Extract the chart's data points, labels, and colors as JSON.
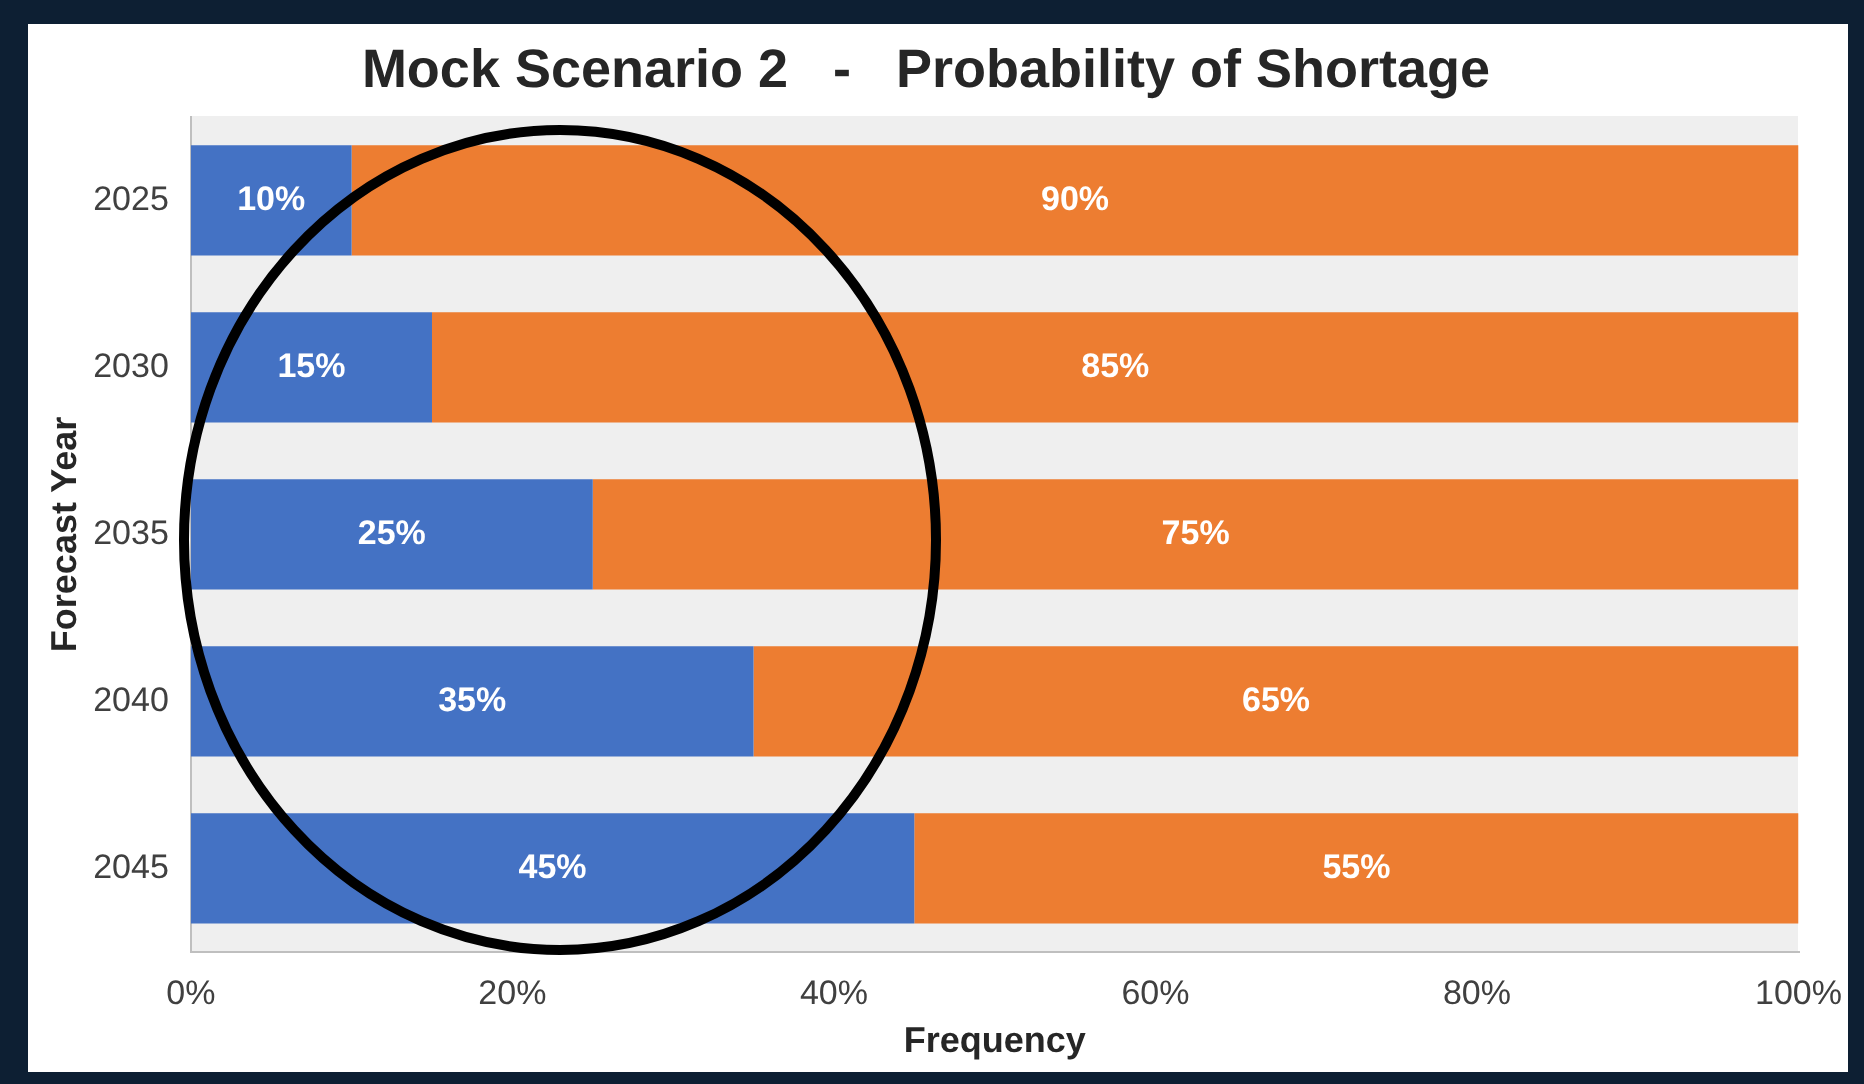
{
  "chart_data": {
    "type": "bar",
    "title": "Mock Scenario 2   -   Probability of Shortage",
    "xlabel": "Frequency",
    "ylabel": "Forecast Year",
    "orientation": "horizontal",
    "stacked": true,
    "categories": [
      "2025",
      "2030",
      "2035",
      "2040",
      "2045"
    ],
    "series": [
      {
        "color": "#4472c4",
        "values": [
          10,
          15,
          25,
          35,
          45
        ],
        "value_labels": [
          "10%",
          "15%",
          "25%",
          "35%",
          "45%"
        ]
      },
      {
        "color": "#ed7d31",
        "values": [
          90,
          85,
          75,
          65,
          55
        ],
        "value_labels": [
          "90%",
          "85%",
          "75%",
          "65%",
          "55%"
        ]
      }
    ],
    "xlim": [
      0,
      100
    ],
    "xticks": [
      {
        "value": 0,
        "label": "0%"
      },
      {
        "value": 20,
        "label": "20%"
      },
      {
        "value": 40,
        "label": "40%"
      },
      {
        "value": 60,
        "label": "60%"
      },
      {
        "value": 80,
        "label": "80%"
      },
      {
        "value": 100,
        "label": "100%"
      }
    ],
    "grid": false,
    "legend": false
  }
}
